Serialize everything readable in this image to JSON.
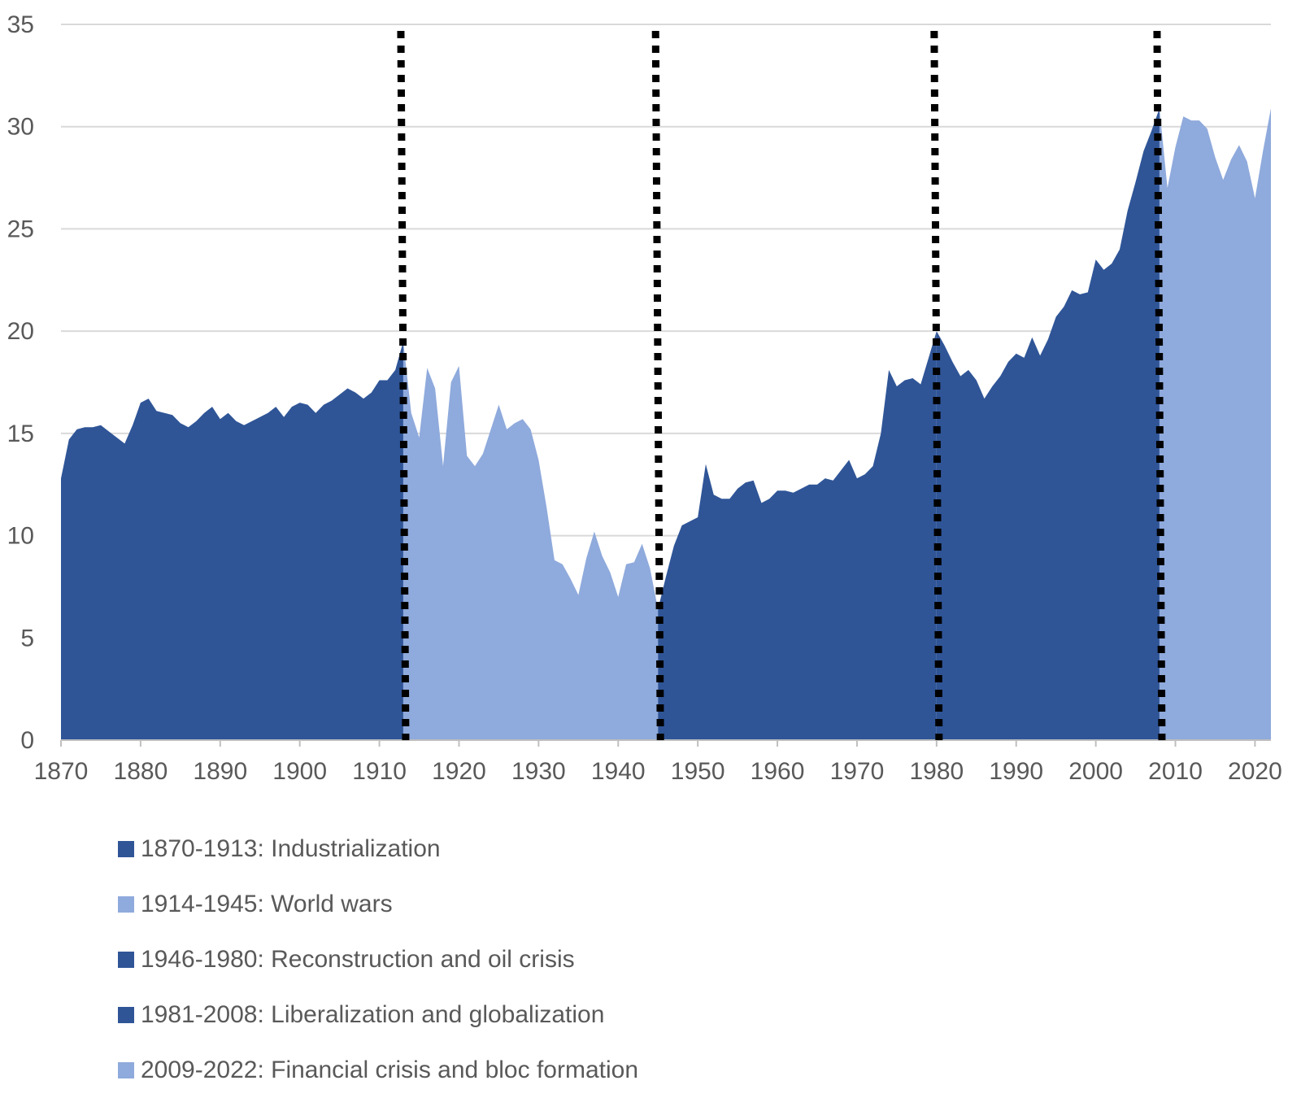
{
  "colors": {
    "dark": "#2f5597",
    "light": "#8faadc",
    "grid": "#d9d9d9",
    "axis": "#bfbfbf",
    "divider": "#000000"
  },
  "chart_data": {
    "type": "area",
    "title": "",
    "xlabel": "",
    "ylabel": "",
    "xlim": [
      1870,
      2022
    ],
    "ylim": [
      0,
      35
    ],
    "grid": true,
    "x_ticks": [
      1870,
      1880,
      1890,
      1900,
      1910,
      1920,
      1930,
      1940,
      1950,
      1960,
      1970,
      1980,
      1990,
      2000,
      2010,
      2020
    ],
    "y_ticks": [
      0,
      5,
      10,
      15,
      20,
      25,
      30,
      35
    ],
    "period_dividers": [
      1913,
      1945,
      1980,
      2008
    ],
    "legend_position": "bottom",
    "series": [
      {
        "name": "1870-1913: Industrialization",
        "color": "#2f5597",
        "x": [
          1870,
          1871,
          1872,
          1873,
          1874,
          1875,
          1876,
          1877,
          1878,
          1879,
          1880,
          1881,
          1882,
          1883,
          1884,
          1885,
          1886,
          1887,
          1888,
          1889,
          1890,
          1891,
          1892,
          1893,
          1894,
          1895,
          1896,
          1897,
          1898,
          1899,
          1900,
          1901,
          1902,
          1903,
          1904,
          1905,
          1906,
          1907,
          1908,
          1909,
          1910,
          1911,
          1912,
          1913
        ],
        "values": [
          12.8,
          14.7,
          15.2,
          15.3,
          15.3,
          15.4,
          15.1,
          14.8,
          14.5,
          15.4,
          16.5,
          16.7,
          16.1,
          16.0,
          15.9,
          15.5,
          15.3,
          15.6,
          16.0,
          16.3,
          15.7,
          16.0,
          15.6,
          15.4,
          15.6,
          15.8,
          16.0,
          16.3,
          15.8,
          16.3,
          16.5,
          16.4,
          16.0,
          16.4,
          16.6,
          16.9,
          17.2,
          17.0,
          16.7,
          17.0,
          17.6,
          17.6,
          18.1,
          19.5
        ]
      },
      {
        "name": "1914-1945: World wars",
        "color": "#8faadc",
        "x": [
          1914,
          1915,
          1916,
          1917,
          1918,
          1919,
          1920,
          1921,
          1922,
          1923,
          1924,
          1925,
          1926,
          1927,
          1928,
          1929,
          1930,
          1931,
          1932,
          1933,
          1934,
          1935,
          1936,
          1937,
          1938,
          1939,
          1940,
          1941,
          1942,
          1943,
          1944,
          1945
        ],
        "values": [
          16.0,
          14.8,
          18.2,
          17.2,
          13.4,
          17.5,
          18.3,
          13.9,
          13.4,
          14.0,
          15.2,
          16.4,
          15.2,
          15.5,
          15.7,
          15.2,
          13.7,
          11.4,
          8.8,
          8.6,
          7.9,
          7.1,
          8.9,
          10.2,
          9.0,
          8.2,
          7.0,
          8.6,
          8.7,
          9.6,
          8.4,
          6.4
        ]
      },
      {
        "name": "1946-1980: Reconstruction and oil crisis",
        "color": "#2f5597",
        "x": [
          1946,
          1947,
          1948,
          1949,
          1950,
          1951,
          1952,
          1953,
          1954,
          1955,
          1956,
          1957,
          1958,
          1959,
          1960,
          1961,
          1962,
          1963,
          1964,
          1965,
          1966,
          1967,
          1968,
          1969,
          1970,
          1971,
          1972,
          1973,
          1974,
          1975,
          1976,
          1977,
          1978,
          1979,
          1980
        ],
        "values": [
          8.0,
          9.5,
          10.5,
          10.7,
          10.9,
          13.5,
          12.0,
          11.8,
          11.8,
          12.3,
          12.6,
          12.7,
          11.6,
          11.8,
          12.2,
          12.2,
          12.1,
          12.3,
          12.5,
          12.5,
          12.8,
          12.7,
          13.2,
          13.7,
          12.8,
          13.0,
          13.4,
          15.0,
          18.1,
          17.3,
          17.6,
          17.7,
          17.4,
          18.7,
          20.0
        ]
      },
      {
        "name": "1981-2008: Liberalization and globalization",
        "color": "#2f5597",
        "x": [
          1981,
          1982,
          1983,
          1984,
          1985,
          1986,
          1987,
          1988,
          1989,
          1990,
          1991,
          1992,
          1993,
          1994,
          1995,
          1996,
          1997,
          1998,
          1999,
          2000,
          2001,
          2002,
          2003,
          2004,
          2005,
          2006,
          2007,
          2008
        ],
        "values": [
          19.3,
          18.5,
          17.8,
          18.1,
          17.6,
          16.7,
          17.3,
          17.8,
          18.5,
          18.9,
          18.7,
          19.7,
          18.8,
          19.6,
          20.7,
          21.2,
          22.0,
          21.8,
          21.9,
          23.5,
          23.0,
          23.3,
          24.0,
          25.9,
          27.3,
          28.8,
          29.8,
          30.9
        ]
      },
      {
        "name": "2009-2022: Financial crisis and bloc formation",
        "color": "#8faadc",
        "x": [
          2009,
          2010,
          2011,
          2012,
          2013,
          2014,
          2015,
          2016,
          2017,
          2018,
          2019,
          2020,
          2021,
          2022
        ],
        "values": [
          27.0,
          29.0,
          30.5,
          30.3,
          30.3,
          29.9,
          28.5,
          27.4,
          28.4,
          29.1,
          28.3,
          26.5,
          28.8,
          30.9
        ]
      }
    ]
  }
}
